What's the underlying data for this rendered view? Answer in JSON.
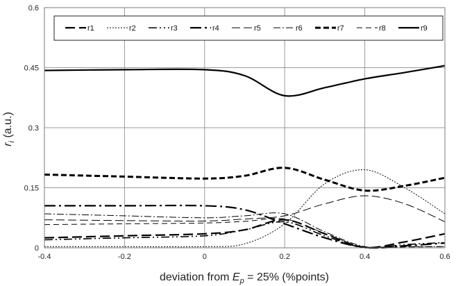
{
  "chart_data": {
    "type": "line",
    "xlabel": "deviation from E_p = 25% (%points)",
    "xlabel_parts": {
      "pre": "deviation from ",
      "var": "E",
      "sub": "p",
      "post": " = 25% (%points)"
    },
    "ylabel": "r_i (a.u.)",
    "ylabel_parts": {
      "var": "r",
      "sub": "i",
      "post": " (a.u.)"
    },
    "xlim": [
      -0.4,
      0.6
    ],
    "ylim": [
      0,
      0.6
    ],
    "xticks": [
      -0.4,
      -0.2,
      0,
      0.2,
      0.4,
      0.6
    ],
    "xtick_labels": [
      "-0.4",
      "-0.2",
      "0",
      "0.2",
      "0.4",
      "0.6"
    ],
    "yticks": [
      0,
      0.15,
      0.3,
      0.45,
      0.6
    ],
    "ytick_labels": [
      "0",
      "0.15",
      "0.3",
      "0.45",
      "0.6"
    ],
    "grid": true,
    "legend_position": "top",
    "series": [
      {
        "name": "r1",
        "style": "dash-long",
        "width": 2.2,
        "x": [
          -0.4,
          -0.2,
          0,
          0.1,
          0.2,
          0.3,
          0.4,
          0.5,
          0.6
        ],
        "y": [
          0.025,
          0.03,
          0.035,
          0.045,
          0.07,
          0.035,
          0.001,
          0.015,
          0.035
        ]
      },
      {
        "name": "r2",
        "style": "dot",
        "width": 1,
        "x": [
          -0.4,
          -0.2,
          0,
          0.1,
          0.2,
          0.3,
          0.4,
          0.5,
          0.6
        ],
        "y": [
          0.003,
          0.003,
          0.003,
          0.01,
          0.06,
          0.16,
          0.195,
          0.15,
          0.085
        ]
      },
      {
        "name": "r3",
        "style": "dash-dot-dot",
        "width": 1.6,
        "x": [
          -0.4,
          -0.2,
          0,
          0.1,
          0.2,
          0.3,
          0.4,
          0.5,
          0.6
        ],
        "y": [
          0.02,
          0.025,
          0.03,
          0.045,
          0.065,
          0.03,
          0.0,
          0.008,
          0.013
        ]
      },
      {
        "name": "r4",
        "style": "long-dash-dot",
        "width": 2.2,
        "x": [
          -0.4,
          -0.2,
          0,
          0.1,
          0.2,
          0.3,
          0.4,
          0.5,
          0.6
        ],
        "y": [
          0.105,
          0.105,
          0.105,
          0.095,
          0.06,
          0.025,
          0.001,
          0.005,
          0.012
        ]
      },
      {
        "name": "r5",
        "style": "long-dash-thin",
        "width": 1,
        "x": [
          -0.4,
          -0.2,
          0,
          0.1,
          0.2,
          0.3,
          0.4,
          0.5,
          0.6
        ],
        "y": [
          0.07,
          0.068,
          0.067,
          0.072,
          0.08,
          0.11,
          0.13,
          0.11,
          0.065
        ]
      },
      {
        "name": "r6",
        "style": "dash-dot-thin",
        "width": 1,
        "x": [
          -0.4,
          -0.2,
          0,
          0.1,
          0.2,
          0.3,
          0.4,
          0.5,
          0.6
        ],
        "y": [
          0.085,
          0.08,
          0.075,
          0.08,
          0.085,
          0.04,
          0.003,
          0.003,
          0.003
        ]
      },
      {
        "name": "r7",
        "style": "heavy-dash",
        "width": 3,
        "x": [
          -0.4,
          -0.2,
          0,
          0.1,
          0.2,
          0.3,
          0.4,
          0.5,
          0.6
        ],
        "y": [
          0.183,
          0.178,
          0.173,
          0.18,
          0.2,
          0.17,
          0.143,
          0.155,
          0.175
        ]
      },
      {
        "name": "r8",
        "style": "medium-dash",
        "width": 1,
        "x": [
          -0.4,
          -0.2,
          0,
          0.1,
          0.2,
          0.3,
          0.4,
          0.5,
          0.6
        ],
        "y": [
          0.058,
          0.06,
          0.062,
          0.066,
          0.072,
          0.036,
          0.001,
          0.002,
          0.003
        ]
      },
      {
        "name": "r9",
        "style": "solid",
        "width": 2.2,
        "x": [
          -0.4,
          -0.2,
          0,
          0.1,
          0.2,
          0.3,
          0.4,
          0.5,
          0.6
        ],
        "y": [
          0.443,
          0.445,
          0.445,
          0.43,
          0.38,
          0.4,
          0.422,
          0.438,
          0.455
        ]
      }
    ]
  }
}
